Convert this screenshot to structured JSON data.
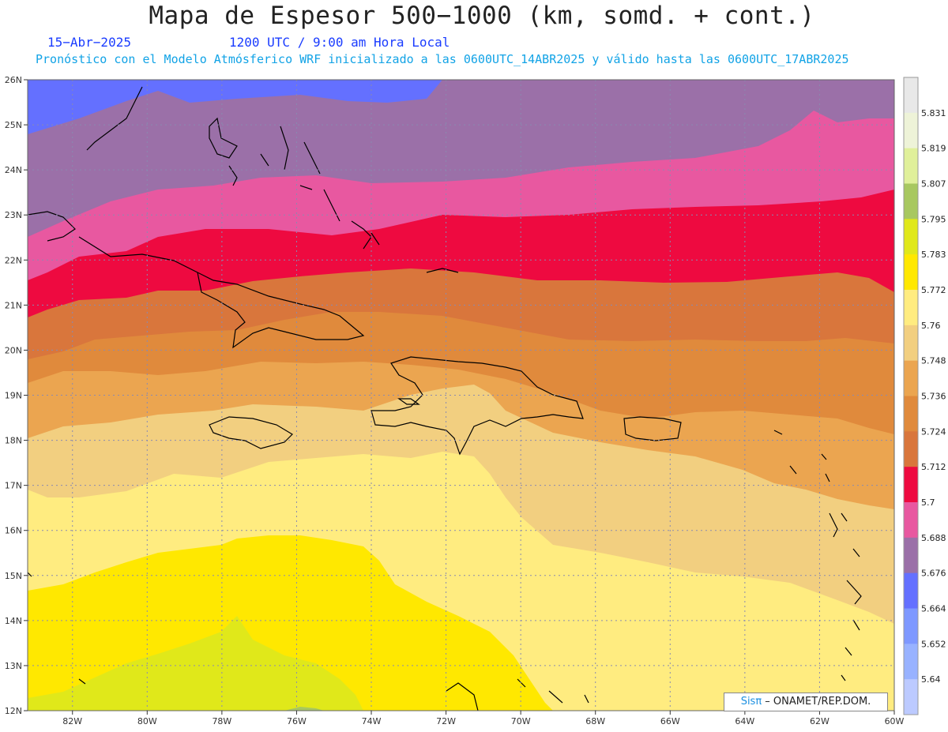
{
  "header": {
    "title": "Mapa de Espesor 500−1000 (km, somd. + cont.)",
    "date": "15−Abr−2025",
    "time": "1200 UTC / 9:00 am Hora Local",
    "subtitle": "Pronóstico con el Modelo Atmósferico WRF inicializado a las 0600UTC_14ABR2025 y válido hasta las  0600UTC_17ABR2025"
  },
  "map": {
    "lat_labels": [
      "26N",
      "25N",
      "24N",
      "23N",
      "22N",
      "21N",
      "20N",
      "19N",
      "18N",
      "17N",
      "16N",
      "15N",
      "14N",
      "13N",
      "12N"
    ],
    "lon_labels": [
      "82W",
      "80W",
      "78W",
      "76W",
      "74W",
      "72W",
      "70W",
      "68W",
      "66W",
      "64W",
      "62W",
      "60W"
    ],
    "lat_range": [
      12,
      26
    ],
    "lon_range": [
      -83.2,
      -60
    ],
    "grid": "dotted"
  },
  "colorbar": {
    "levels": [
      "5.831",
      "5.819",
      "5.807",
      "5.795",
      "5.783",
      "5.772",
      "5.76",
      "5.748",
      "5.736",
      "5.724",
      "5.712",
      "5.7",
      "5.688",
      "5.676",
      "5.664",
      "5.652",
      "5.64"
    ],
    "colors": [
      "#e8e8e8",
      "#eef3d8",
      "#e0f09a",
      "#a8c860",
      "#e0e81a",
      "#ffe800",
      "#ffec80",
      "#f2cf80",
      "#eba550",
      "#e08a3c",
      "#d9763c",
      "#ee0a40",
      "#e858a0",
      "#9b70a8",
      "#6470ff",
      "#7e98ff",
      "#98b2ff",
      "#bccaff"
    ]
  },
  "credit": {
    "brand": "Sisπ",
    "text": " – ONAMET/REP.DOM."
  }
}
